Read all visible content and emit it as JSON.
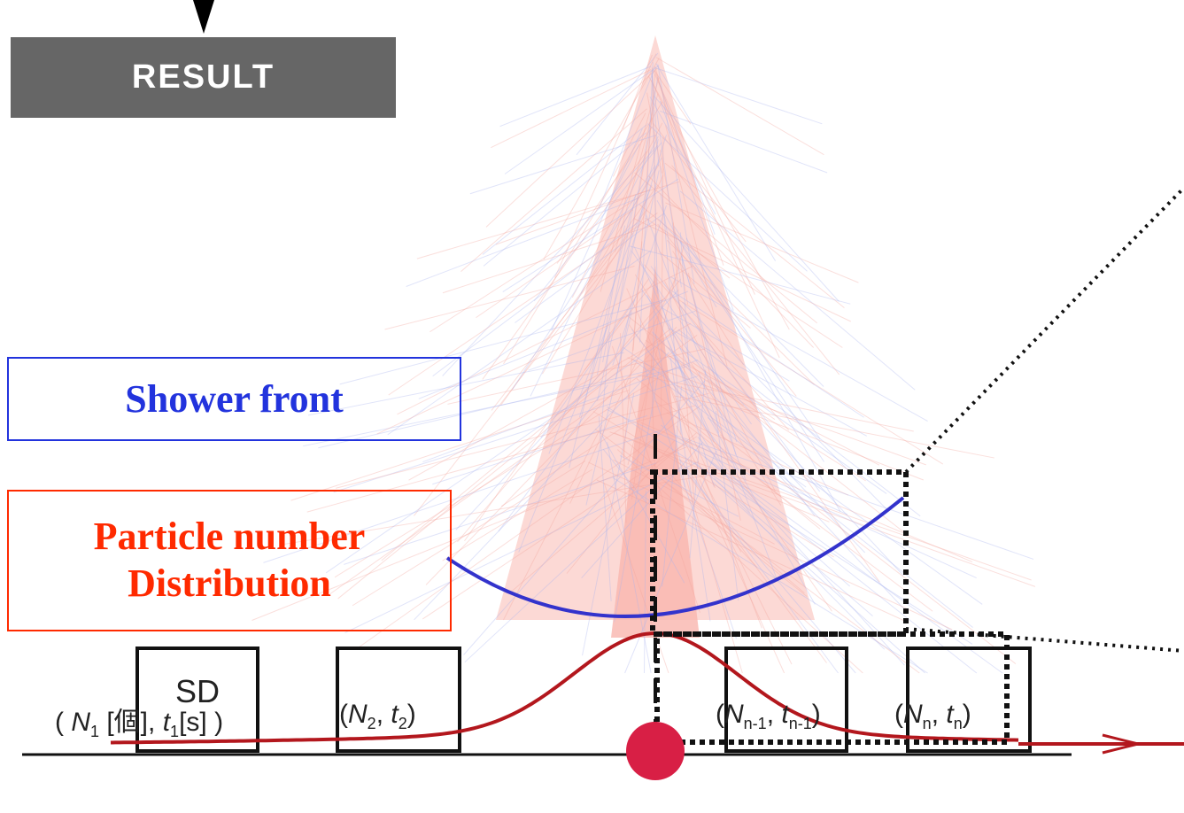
{
  "result": "RESULT",
  "shower_front": "Shower front",
  "particle_box": {
    "line1": "Particle number",
    "line2": "Distribution"
  },
  "detector_label": "SD",
  "detectors": [
    {
      "parts": [
        {
          "text": "( ",
          "kind": "plain"
        },
        {
          "text": "N",
          "kind": "italic"
        },
        {
          "text": "1",
          "kind": "sub"
        },
        {
          "text": " [個], ",
          "kind": "plain"
        },
        {
          "text": "t",
          "kind": "italic"
        },
        {
          "text": "1",
          "kind": "sub"
        },
        {
          "text": "[s] )",
          "kind": "plain"
        }
      ]
    },
    {
      "parts": [
        {
          "text": "(",
          "kind": "plain"
        },
        {
          "text": "N",
          "kind": "italic"
        },
        {
          "text": "2",
          "kind": "sub"
        },
        {
          "text": ", ",
          "kind": "plain"
        },
        {
          "text": "t",
          "kind": "italic"
        },
        {
          "text": "2",
          "kind": "sub"
        },
        {
          "text": ")",
          "kind": "plain"
        }
      ]
    },
    {
      "parts": [
        {
          "text": "(",
          "kind": "plain"
        },
        {
          "text": "N",
          "kind": "italic"
        },
        {
          "text": "n-1",
          "kind": "sub"
        },
        {
          "text": ", ",
          "kind": "plain"
        },
        {
          "text": "t",
          "kind": "italic"
        },
        {
          "text": "n-1",
          "kind": "sub"
        },
        {
          "text": ")",
          "kind": "plain"
        }
      ]
    },
    {
      "parts": [
        {
          "text": "(",
          "kind": "plain"
        },
        {
          "text": "N",
          "kind": "italic"
        },
        {
          "text": "n",
          "kind": "sub"
        },
        {
          "text": ", ",
          "kind": "plain"
        },
        {
          "text": "t",
          "kind": "italic"
        },
        {
          "text": "n",
          "kind": "sub"
        },
        {
          "text": ")",
          "kind": "plain"
        }
      ]
    }
  ]
}
